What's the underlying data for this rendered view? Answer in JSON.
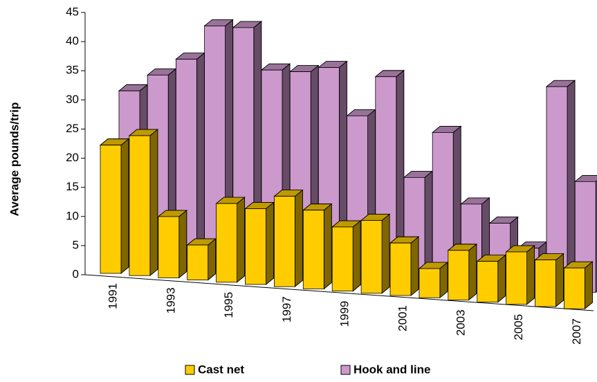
{
  "chart_data": {
    "type": "bar3d",
    "y_label": "Average pounds/trip",
    "categories": [
      "1991",
      null,
      "1993",
      null,
      "1995",
      null,
      "1997",
      null,
      "1999",
      null,
      "2001",
      null,
      "2003",
      null,
      "2005",
      null,
      "2007"
    ],
    "series": [
      {
        "name": "Cast net",
        "color": "#ffcc00",
        "values": [
          22,
          24,
          10.5,
          6,
          13.5,
          13,
          15.5,
          13.5,
          11,
          12.5,
          9,
          5,
          8.5,
          7,
          9,
          8,
          7
        ]
      },
      {
        "name": "Hook and line",
        "color": "#cc99cc",
        "values": [
          30,
          33,
          36,
          42,
          42,
          35,
          35,
          36,
          28,
          35,
          18,
          26,
          14,
          11,
          7,
          35,
          19
        ]
      }
    ],
    "ylim": [
      0,
      45
    ],
    "yticks": [
      0,
      5,
      10,
      15,
      20,
      25,
      30,
      35,
      40,
      45
    ]
  }
}
